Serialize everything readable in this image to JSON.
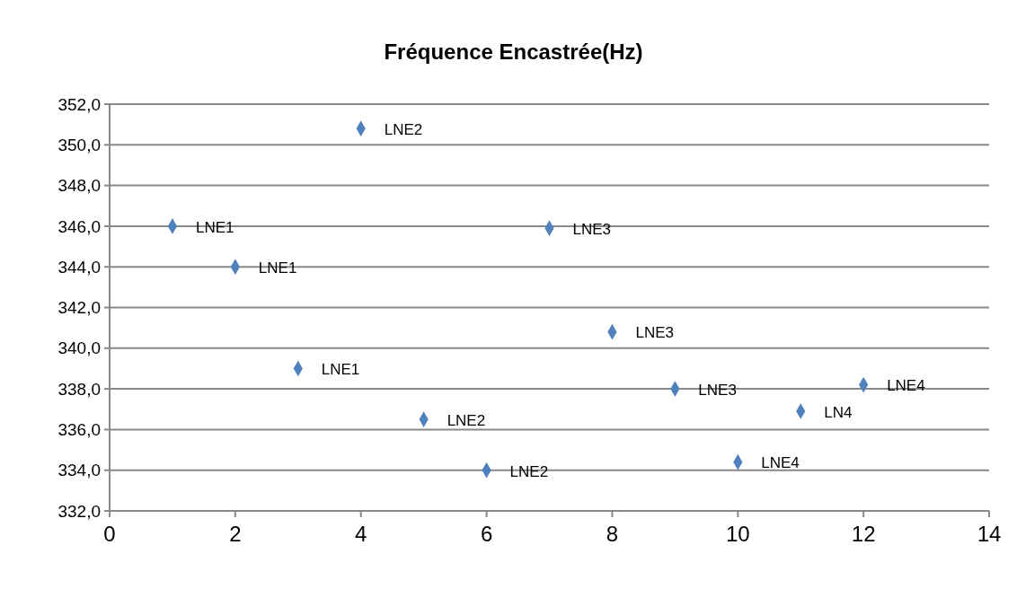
{
  "chart_data": {
    "type": "scatter",
    "title": "Fréquence Encastrée(Hz)",
    "x": [
      1,
      2,
      3,
      4,
      5,
      6,
      7,
      8,
      9,
      10,
      11,
      12
    ],
    "series": [
      {
        "color": "#4f81bd",
        "values": [
          346.0,
          344.0,
          339.0,
          350.8,
          336.5,
          334.0,
          345.9,
          340.8,
          338.0,
          334.4,
          336.9,
          338.2
        ]
      }
    ],
    "xlim": [
      0,
      14
    ],
    "xticks": [
      0,
      2,
      4,
      6,
      8,
      10,
      12,
      14
    ],
    "ylim": [
      332,
      352
    ],
    "yticks": [
      {
        "value": 332,
        "label": "332,0"
      },
      {
        "value": 334,
        "label": "334,0"
      },
      {
        "value": 336,
        "label": "336,0"
      },
      {
        "value": 338,
        "label": "338,0"
      },
      {
        "value": 340,
        "label": "340,0"
      },
      {
        "value": 342,
        "label": "342,0"
      },
      {
        "value": 344,
        "label": "344,0"
      },
      {
        "value": 346,
        "label": "346,0"
      },
      {
        "value": 348,
        "label": "348,0"
      },
      {
        "value": 350,
        "label": "350,0"
      },
      {
        "value": 352,
        "label": "352,0"
      }
    ],
    "grid": "y",
    "marker": "diamond",
    "annotations": [
      {
        "text": "LNE1",
        "x": 1,
        "y": 346.0
      },
      {
        "text": "LNE1",
        "x": 2,
        "y": 344.0
      },
      {
        "text": "LNE1",
        "x": 3,
        "y": 339.0
      },
      {
        "text": "LNE2",
        "x": 4,
        "y": 350.8
      },
      {
        "text": "LNE2",
        "x": 5,
        "y": 336.5
      },
      {
        "text": "LNE2",
        "x": 6,
        "y": 334.0
      },
      {
        "text": "LNE3",
        "x": 7,
        "y": 345.9
      },
      {
        "text": "LNE3",
        "x": 8,
        "y": 340.8
      },
      {
        "text": "LNE3",
        "x": 9,
        "y": 338.0
      },
      {
        "text": "LNE4",
        "x": 10,
        "y": 334.4
      },
      {
        "text": "LN4",
        "x": 11,
        "y": 336.9
      },
      {
        "text": "LNE4",
        "x": 12,
        "y": 338.2
      }
    ]
  }
}
